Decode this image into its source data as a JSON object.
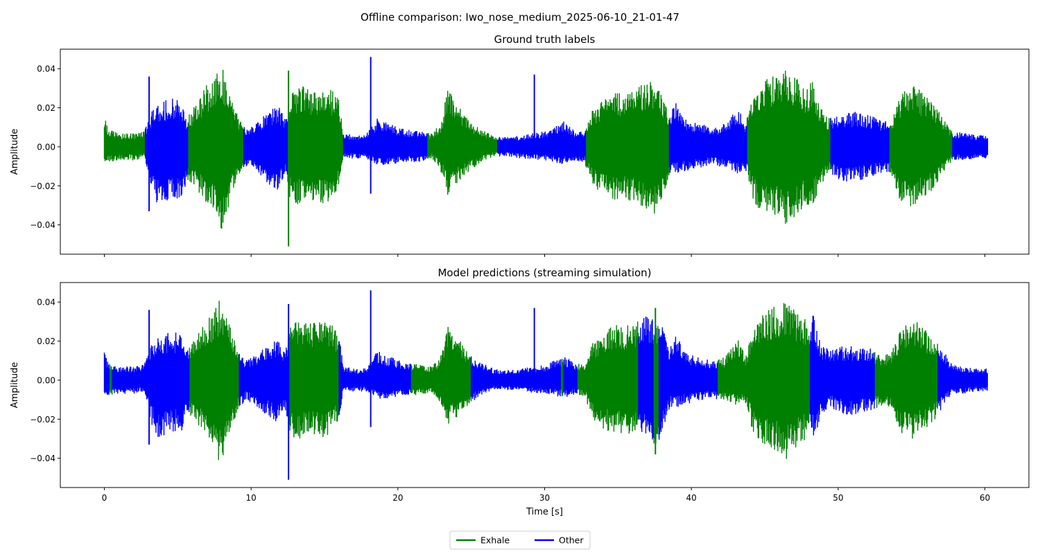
{
  "figure": {
    "suptitle": "Offline comparison: Iwo_nose_medium_2025-06-10_21-01-47"
  },
  "chart_data": [
    {
      "type": "line",
      "title": "Ground truth labels",
      "xlabel": "",
      "ylabel": "Amplitude",
      "xlim": [
        -3,
        63
      ],
      "ylim": [
        -0.055,
        0.05
      ],
      "xticks": [
        0,
        10,
        20,
        30,
        40,
        50,
        60
      ],
      "xticklabels": [
        "",
        "",
        "",
        "",
        "",
        "",
        ""
      ],
      "yticks": [
        -0.04,
        -0.02,
        0.0,
        0.02,
        0.04
      ],
      "yticklabels": [
        "−0.04",
        "−0.02",
        "0.00",
        "0.02",
        "0.04"
      ],
      "grid": false,
      "series": [
        {
          "name": "Exhale",
          "color": "#008000",
          "segments": [
            [
              0.0,
              2.8
            ],
            [
              5.7,
              9.5
            ],
            [
              12.5,
              16.3
            ],
            [
              22.0,
              26.8
            ],
            [
              32.8,
              38.5
            ],
            [
              43.8,
              49.5
            ],
            [
              53.5,
              57.8
            ]
          ]
        },
        {
          "name": "Other",
          "color": "#0000ff",
          "segments": [
            [
              2.8,
              5.7
            ],
            [
              9.5,
              12.5
            ],
            [
              16.3,
              22.0
            ],
            [
              26.8,
              32.8
            ],
            [
              38.5,
              43.8
            ],
            [
              49.5,
              53.5
            ],
            [
              57.8,
              60.2
            ]
          ]
        }
      ],
      "spikes": [
        {
          "x": 3.05,
          "max": 0.036,
          "min": -0.033
        },
        {
          "x": 12.55,
          "max": 0.039,
          "min": -0.051
        },
        {
          "x": 18.15,
          "max": 0.046,
          "min": -0.024
        },
        {
          "x": 29.3,
          "max": 0.037,
          "min": -0.004
        }
      ]
    },
    {
      "type": "line",
      "title": "Model predictions (streaming simulation)",
      "xlabel": "Time [s]",
      "ylabel": "Amplitude",
      "xlim": [
        -3,
        63
      ],
      "ylim": [
        -0.055,
        0.05
      ],
      "xticks": [
        0,
        10,
        20,
        30,
        40,
        50,
        60
      ],
      "xticklabels": [
        "0",
        "10",
        "20",
        "30",
        "40",
        "50",
        "60"
      ],
      "yticks": [
        -0.04,
        -0.02,
        0.0,
        0.02,
        0.04
      ],
      "yticklabels": [
        "−0.04",
        "−0.02",
        "0.00",
        "0.02",
        "0.04"
      ],
      "grid": false,
      "series": [
        {
          "name": "Exhale",
          "color": "#008000",
          "segments": [
            [
              0.35,
              0.55
            ],
            [
              5.8,
              9.2
            ],
            [
              12.6,
              16.0
            ],
            [
              20.9,
              25.0
            ],
            [
              31.1,
              31.3
            ],
            [
              32.2,
              36.4
            ],
            [
              37.4,
              37.8
            ],
            [
              41.8,
              48.1
            ],
            [
              52.5,
              56.8
            ]
          ]
        },
        {
          "name": "Other",
          "color": "#0000ff",
          "segments": [
            [
              0.0,
              0.35
            ],
            [
              0.55,
              5.8
            ],
            [
              9.2,
              12.6
            ],
            [
              16.0,
              20.9
            ],
            [
              25.0,
              31.1
            ],
            [
              31.3,
              32.2
            ],
            [
              36.4,
              37.4
            ],
            [
              37.8,
              41.8
            ],
            [
              48.1,
              52.5
            ],
            [
              56.8,
              60.2
            ]
          ]
        }
      ],
      "spikes": [
        {
          "x": 3.05,
          "max": 0.036,
          "min": -0.033
        },
        {
          "x": 12.55,
          "max": 0.039,
          "min": -0.051
        },
        {
          "x": 18.15,
          "max": 0.046,
          "min": -0.024
        },
        {
          "x": 29.3,
          "max": 0.037,
          "min": -0.004
        },
        {
          "x": 37.55,
          "max": 0.037,
          "min": -0.038
        }
      ]
    }
  ],
  "envelope": [
    [
      0.0,
      0.016,
      -0.008
    ],
    [
      0.3,
      0.009,
      -0.008
    ],
    [
      1.0,
      0.007,
      -0.007
    ],
    [
      2.0,
      0.007,
      -0.007
    ],
    [
      2.7,
      0.008,
      -0.006
    ],
    [
      3.2,
      0.018,
      -0.022
    ],
    [
      3.6,
      0.022,
      -0.03
    ],
    [
      4.2,
      0.024,
      -0.028
    ],
    [
      4.8,
      0.025,
      -0.027
    ],
    [
      5.3,
      0.023,
      -0.026
    ],
    [
      5.6,
      0.016,
      -0.018
    ],
    [
      5.9,
      0.018,
      -0.019
    ],
    [
      6.5,
      0.026,
      -0.024
    ],
    [
      7.0,
      0.032,
      -0.03
    ],
    [
      7.5,
      0.036,
      -0.036
    ],
    [
      7.9,
      0.043,
      -0.044
    ],
    [
      8.2,
      0.038,
      -0.04
    ],
    [
      8.7,
      0.025,
      -0.025
    ],
    [
      9.2,
      0.014,
      -0.015
    ],
    [
      9.6,
      0.01,
      -0.01
    ],
    [
      10.3,
      0.013,
      -0.013
    ],
    [
      11.0,
      0.017,
      -0.018
    ],
    [
      11.5,
      0.02,
      -0.021
    ],
    [
      11.9,
      0.022,
      -0.023
    ],
    [
      12.3,
      0.014,
      -0.015
    ],
    [
      12.7,
      0.029,
      -0.029
    ],
    [
      13.3,
      0.032,
      -0.03
    ],
    [
      14.0,
      0.029,
      -0.028
    ],
    [
      14.7,
      0.03,
      -0.03
    ],
    [
      15.4,
      0.03,
      -0.028
    ],
    [
      16.0,
      0.024,
      -0.02
    ],
    [
      16.3,
      0.007,
      -0.006
    ],
    [
      17.0,
      0.006,
      -0.006
    ],
    [
      17.8,
      0.006,
      -0.006
    ],
    [
      18.6,
      0.015,
      -0.01
    ],
    [
      19.5,
      0.012,
      -0.009
    ],
    [
      20.5,
      0.009,
      -0.008
    ],
    [
      21.5,
      0.008,
      -0.008
    ],
    [
      22.3,
      0.007,
      -0.006
    ],
    [
      22.9,
      0.012,
      -0.012
    ],
    [
      23.4,
      0.03,
      -0.025
    ],
    [
      23.9,
      0.024,
      -0.02
    ],
    [
      24.7,
      0.015,
      -0.014
    ],
    [
      25.5,
      0.01,
      -0.009
    ],
    [
      26.5,
      0.006,
      -0.005
    ],
    [
      27.3,
      0.005,
      -0.005
    ],
    [
      28.5,
      0.006,
      -0.006
    ],
    [
      30.0,
      0.008,
      -0.007
    ],
    [
      31.3,
      0.013,
      -0.009
    ],
    [
      32.0,
      0.009,
      -0.008
    ],
    [
      32.7,
      0.008,
      -0.008
    ],
    [
      33.3,
      0.02,
      -0.02
    ],
    [
      34.0,
      0.024,
      -0.025
    ],
    [
      34.8,
      0.029,
      -0.028
    ],
    [
      35.5,
      0.028,
      -0.027
    ],
    [
      36.3,
      0.03,
      -0.029
    ],
    [
      37.0,
      0.034,
      -0.032
    ],
    [
      37.5,
      0.033,
      -0.036
    ],
    [
      38.0,
      0.028,
      -0.027
    ],
    [
      38.5,
      0.016,
      -0.015
    ],
    [
      39.0,
      0.024,
      -0.014
    ],
    [
      39.8,
      0.013,
      -0.012
    ],
    [
      40.6,
      0.012,
      -0.011
    ],
    [
      41.3,
      0.01,
      -0.009
    ],
    [
      42.3,
      0.012,
      -0.011
    ],
    [
      43.2,
      0.021,
      -0.014
    ],
    [
      43.7,
      0.012,
      -0.012
    ],
    [
      44.3,
      0.031,
      -0.03
    ],
    [
      45.0,
      0.036,
      -0.034
    ],
    [
      45.7,
      0.038,
      -0.036
    ],
    [
      46.4,
      0.04,
      -0.041
    ],
    [
      47.1,
      0.036,
      -0.036
    ],
    [
      47.8,
      0.031,
      -0.03
    ],
    [
      48.3,
      0.034,
      -0.03
    ],
    [
      48.8,
      0.02,
      -0.021
    ],
    [
      49.4,
      0.015,
      -0.013
    ],
    [
      50.0,
      0.017,
      -0.017
    ],
    [
      50.8,
      0.018,
      -0.018
    ],
    [
      51.6,
      0.018,
      -0.017
    ],
    [
      52.3,
      0.016,
      -0.016
    ],
    [
      53.0,
      0.013,
      -0.013
    ],
    [
      53.6,
      0.014,
      -0.014
    ],
    [
      54.0,
      0.022,
      -0.026
    ],
    [
      54.5,
      0.029,
      -0.029
    ],
    [
      55.0,
      0.032,
      -0.031
    ],
    [
      55.6,
      0.029,
      -0.027
    ],
    [
      56.2,
      0.024,
      -0.024
    ],
    [
      56.8,
      0.019,
      -0.018
    ],
    [
      57.3,
      0.014,
      -0.012
    ],
    [
      57.8,
      0.008,
      -0.007
    ],
    [
      58.6,
      0.007,
      -0.007
    ],
    [
      59.4,
      0.006,
      -0.006
    ],
    [
      60.2,
      0.006,
      -0.006
    ]
  ],
  "legend": {
    "placement": "lower-center",
    "entries": [
      {
        "label": "Exhale",
        "color": "#008000"
      },
      {
        "label": "Other",
        "color": "#0000ff"
      }
    ]
  }
}
